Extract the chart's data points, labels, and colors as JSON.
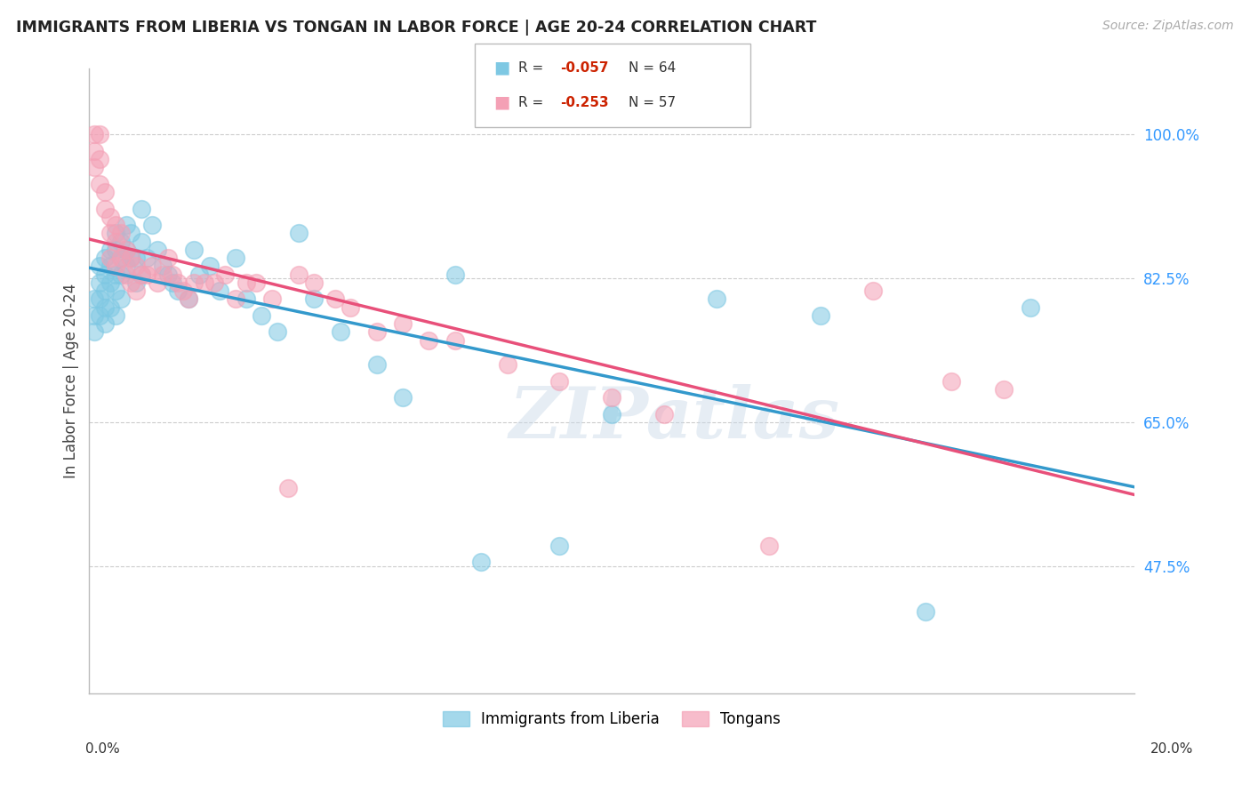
{
  "title": "IMMIGRANTS FROM LIBERIA VS TONGAN IN LABOR FORCE | AGE 20-24 CORRELATION CHART",
  "source": "Source: ZipAtlas.com",
  "ylabel": "In Labor Force | Age 20-24",
  "xlim": [
    0.0,
    0.2
  ],
  "ylim": [
    0.32,
    1.08
  ],
  "yticks": [
    0.475,
    0.65,
    0.825,
    1.0
  ],
  "ytick_labels": [
    "47.5%",
    "65.0%",
    "82.5%",
    "100.0%"
  ],
  "legend_blue_r": "-0.057",
  "legend_blue_n": "64",
  "legend_pink_r": "-0.253",
  "legend_pink_n": "57",
  "blue_color": "#7ec8e3",
  "pink_color": "#f4a0b5",
  "blue_edge_color": "#5aaac8",
  "pink_edge_color": "#e8809a",
  "blue_line_color": "#3399cc",
  "pink_line_color": "#e8507a",
  "watermark": "ZIPatlas",
  "blue_x": [
    0.001,
    0.001,
    0.001,
    0.002,
    0.002,
    0.002,
    0.002,
    0.003,
    0.003,
    0.003,
    0.003,
    0.003,
    0.004,
    0.004,
    0.004,
    0.004,
    0.005,
    0.005,
    0.005,
    0.005,
    0.005,
    0.006,
    0.006,
    0.006,
    0.006,
    0.007,
    0.007,
    0.007,
    0.008,
    0.008,
    0.009,
    0.009,
    0.01,
    0.01,
    0.01,
    0.011,
    0.012,
    0.013,
    0.014,
    0.015,
    0.016,
    0.017,
    0.019,
    0.02,
    0.021,
    0.023,
    0.025,
    0.028,
    0.03,
    0.033,
    0.036,
    0.04,
    0.043,
    0.048,
    0.055,
    0.06,
    0.07,
    0.075,
    0.09,
    0.1,
    0.12,
    0.14,
    0.16,
    0.18
  ],
  "blue_y": [
    0.8,
    0.78,
    0.76,
    0.84,
    0.82,
    0.8,
    0.78,
    0.85,
    0.83,
    0.81,
    0.79,
    0.77,
    0.86,
    0.84,
    0.82,
    0.79,
    0.88,
    0.86,
    0.83,
    0.81,
    0.78,
    0.87,
    0.85,
    0.83,
    0.8,
    0.89,
    0.86,
    0.84,
    0.88,
    0.85,
    0.85,
    0.82,
    0.91,
    0.87,
    0.83,
    0.85,
    0.89,
    0.86,
    0.84,
    0.83,
    0.82,
    0.81,
    0.8,
    0.86,
    0.83,
    0.84,
    0.81,
    0.85,
    0.8,
    0.78,
    0.76,
    0.88,
    0.8,
    0.76,
    0.72,
    0.68,
    0.83,
    0.48,
    0.5,
    0.66,
    0.8,
    0.78,
    0.42,
    0.79
  ],
  "pink_x": [
    0.001,
    0.001,
    0.001,
    0.002,
    0.002,
    0.002,
    0.003,
    0.003,
    0.004,
    0.004,
    0.004,
    0.005,
    0.005,
    0.005,
    0.006,
    0.006,
    0.007,
    0.007,
    0.008,
    0.008,
    0.009,
    0.009,
    0.01,
    0.011,
    0.012,
    0.013,
    0.014,
    0.015,
    0.016,
    0.017,
    0.018,
    0.019,
    0.02,
    0.022,
    0.024,
    0.026,
    0.028,
    0.03,
    0.032,
    0.035,
    0.038,
    0.04,
    0.043,
    0.047,
    0.05,
    0.055,
    0.06,
    0.065,
    0.07,
    0.08,
    0.09,
    0.1,
    0.11,
    0.13,
    0.15,
    0.165,
    0.175
  ],
  "pink_y": [
    1.0,
    0.98,
    0.96,
    1.0,
    0.97,
    0.94,
    0.93,
    0.91,
    0.9,
    0.88,
    0.85,
    0.89,
    0.87,
    0.84,
    0.88,
    0.85,
    0.86,
    0.83,
    0.85,
    0.82,
    0.84,
    0.81,
    0.83,
    0.83,
    0.84,
    0.82,
    0.83,
    0.85,
    0.83,
    0.82,
    0.81,
    0.8,
    0.82,
    0.82,
    0.82,
    0.83,
    0.8,
    0.82,
    0.82,
    0.8,
    0.57,
    0.83,
    0.82,
    0.8,
    0.79,
    0.76,
    0.77,
    0.75,
    0.75,
    0.72,
    0.7,
    0.68,
    0.66,
    0.5,
    0.81,
    0.7,
    0.69
  ]
}
